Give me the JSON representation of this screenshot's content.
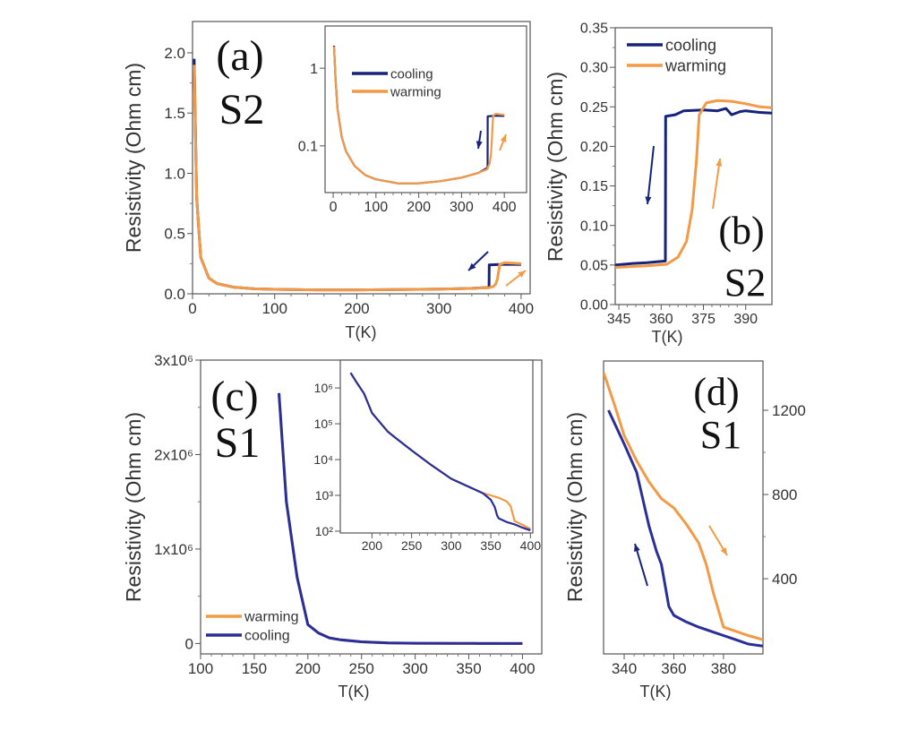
{
  "chart_data": [
    {
      "panel": "(a)",
      "sample": "S2",
      "type": "line",
      "xlabel": "T(K)",
      "ylabel": "Resistivity (Ohm cm)",
      "xlim": [
        0,
        411
      ],
      "ylim": [
        0,
        2.26
      ],
      "yscale": "linear",
      "xticks": [
        0,
        100,
        200,
        300,
        400
      ],
      "xticklabels": [
        "0",
        "100",
        "200",
        "300",
        "400"
      ],
      "yticks": [
        0,
        0.5,
        1.0,
        1.5,
        2.0
      ],
      "yticklabels": [
        "0.0",
        "0.5",
        "1.0",
        "1.5",
        "2.0"
      ],
      "series": [
        {
          "name": "cooling",
          "color": "#16237a",
          "x": [
            2,
            5,
            10,
            20,
            30,
            50,
            75,
            100,
            150,
            200,
            250,
            300,
            340,
            360,
            361,
            361.2,
            380,
            400
          ],
          "y": [
            1.95,
            0.8,
            0.3,
            0.13,
            0.085,
            0.055,
            0.042,
            0.037,
            0.033,
            0.033,
            0.035,
            0.039,
            0.045,
            0.052,
            0.052,
            0.24,
            0.245,
            0.243
          ]
        },
        {
          "name": "warming",
          "color": "#f29a45",
          "x": [
            2,
            5,
            10,
            20,
            30,
            50,
            75,
            100,
            150,
            200,
            250,
            300,
            340,
            360,
            366,
            369,
            371,
            372.5,
            374,
            380,
            390,
            400
          ],
          "y": [
            1.9,
            0.8,
            0.3,
            0.13,
            0.085,
            0.055,
            0.042,
            0.037,
            0.033,
            0.033,
            0.035,
            0.039,
            0.045,
            0.05,
            0.06,
            0.08,
            0.12,
            0.18,
            0.245,
            0.258,
            0.254,
            0.25
          ]
        }
      ],
      "arrows": [
        {
          "direction": "down-left",
          "color": "#16237a"
        },
        {
          "direction": "up-right",
          "color": "#f29a45"
        }
      ],
      "inset": {
        "yscale": "log",
        "xlim": [
          -19,
          452
        ],
        "ylim": [
          0.025,
          3.5
        ],
        "xticks": [
          0,
          100,
          200,
          300,
          400
        ],
        "xticklabels": [
          "0",
          "100",
          "200",
          "300",
          "400"
        ],
        "yticks": [
          0.1,
          1
        ],
        "yticklabels": [
          "0.1",
          "1"
        ],
        "legend": [
          "cooling",
          "warming"
        ],
        "legend_position": "top-left",
        "arrows": [
          {
            "direction": "down",
            "color": "#16237a"
          },
          {
            "direction": "up",
            "color": "#f29a45"
          }
        ]
      }
    },
    {
      "panel": "(b)",
      "sample": "S2",
      "type": "line",
      "xlabel": "T(K)",
      "ylabel": "Resistivity (Ohm cm)",
      "xlim": [
        343.7,
        399.3
      ],
      "ylim": [
        0,
        0.35
      ],
      "yscale": "linear",
      "xticks": [
        345,
        360,
        375,
        390
      ],
      "xticklabels": [
        "345",
        "360",
        "375",
        "390"
      ],
      "yticks": [
        0,
        0.05,
        0.1,
        0.15,
        0.2,
        0.25,
        0.3,
        0.35
      ],
      "yticklabels": [
        "0.00",
        "0.05",
        "0.10",
        "0.15",
        "0.20",
        "0.25",
        "0.30",
        "0.35"
      ],
      "legend": [
        "cooling",
        "warming"
      ],
      "legend_position": "top-left",
      "series": [
        {
          "name": "cooling",
          "color": "#16237a",
          "x": [
            343.7,
            350,
            355,
            361.5,
            361.6,
            365,
            368,
            375,
            380,
            383,
            385,
            388,
            390,
            395,
            399.3
          ],
          "y": [
            0.05,
            0.052,
            0.053,
            0.055,
            0.238,
            0.24,
            0.245,
            0.246,
            0.245,
            0.248,
            0.24,
            0.244,
            0.245,
            0.243,
            0.242
          ]
        },
        {
          "name": "warming",
          "color": "#f29a45",
          "x": [
            343.7,
            355,
            362,
            366,
            369,
            371,
            372.5,
            373.5,
            376,
            380,
            385,
            390,
            395,
            399.3
          ],
          "y": [
            0.047,
            0.049,
            0.051,
            0.06,
            0.08,
            0.12,
            0.18,
            0.24,
            0.255,
            0.258,
            0.257,
            0.254,
            0.25,
            0.249
          ]
        }
      ],
      "arrows": [
        {
          "direction": "down",
          "color": "#16237a"
        },
        {
          "direction": "up",
          "color": "#f29a45"
        }
      ]
    },
    {
      "panel": "(c)",
      "sample": "S1",
      "type": "line",
      "xlabel": "T(K)",
      "ylabel": "Resistivity (Ohm cm)",
      "xlim": [
        100,
        418
      ],
      "ylim": [
        -110000,
        3000000
      ],
      "yscale": "linear",
      "xticks": [
        100,
        150,
        200,
        250,
        300,
        350,
        400
      ],
      "xticklabels": [
        "100",
        "150",
        "200",
        "250",
        "300",
        "350",
        "400"
      ],
      "yticks": [
        0,
        1000000,
        2000000,
        3000000
      ],
      "yticklabels": [
        "0",
        "1x10⁶",
        "2x10⁶",
        "3x10⁶"
      ],
      "legend": [
        "warming",
        "cooling"
      ],
      "legend_position": "bottom-left",
      "series": [
        {
          "name": "warming",
          "color": "#f29a45",
          "x": [
            173,
            180,
            190,
            200,
            210,
            220,
            230,
            250,
            275,
            300,
            340,
            350,
            360,
            370,
            375,
            380,
            390,
            400
          ],
          "y": [
            2650000,
            1500000,
            700000,
            200000,
            110000,
            60000,
            40000,
            18000,
            7000,
            2900,
            1150,
            1000,
            850,
            680,
            500,
            190,
            150,
            115
          ]
        },
        {
          "name": "cooling",
          "color": "#2a2f98",
          "x": [
            173,
            180,
            190,
            200,
            210,
            220,
            230,
            250,
            275,
            300,
            340,
            350,
            355,
            358,
            360,
            370,
            380,
            390,
            400
          ],
          "y": [
            2650000,
            1500000,
            700000,
            200000,
            110000,
            60000,
            40000,
            18000,
            7000,
            2900,
            1150,
            750,
            470,
            270,
            226,
            180,
            155,
            125,
            105
          ]
        }
      ],
      "inset": {
        "yscale": "log",
        "xlim": [
          160,
          403
        ],
        "ylim": [
          89,
          6000000
        ],
        "xticks": [
          200,
          250,
          300,
          350,
          400
        ],
        "xticklabels": [
          "200",
          "250",
          "300",
          "350",
          "400"
        ],
        "yticks": [
          100,
          1000,
          10000,
          100000,
          1000000
        ],
        "yticklabels": [
          "10²",
          "10³",
          "10⁴",
          "10⁵",
          "10⁶"
        ]
      }
    },
    {
      "panel": "(d)",
      "sample": "S1",
      "type": "line",
      "xlabel": "T(K)",
      "ylabel": "Resistivity (Ohm cm)",
      "xlim": [
        331.7,
        395.9
      ],
      "ylim": [
        43,
        1434
      ],
      "yscale": "linear",
      "yaxis_side": "right",
      "xticks": [
        340,
        360,
        380
      ],
      "xticklabels": [
        "340",
        "360",
        "380"
      ],
      "yticks": [
        400,
        800,
        1200
      ],
      "yticklabels": [
        "400",
        "800",
        "1200"
      ],
      "series": [
        {
          "name": "warming",
          "color": "#f29a45",
          "x": [
            331.7,
            336,
            340,
            345,
            350,
            355,
            360,
            365,
            370,
            373,
            376,
            380,
            385,
            390,
            395.9
          ],
          "y": [
            1380,
            1230,
            1080,
            960,
            860,
            780,
            736,
            660,
            570,
            470,
            330,
            170,
            150,
            130,
            110
          ]
        },
        {
          "name": "cooling",
          "color": "#2a2f98",
          "x": [
            333.7,
            340,
            345,
            350,
            353,
            355,
            358,
            360,
            365,
            370,
            375,
            380,
            385,
            390,
            395.9
          ],
          "y": [
            1200,
            1040,
            906,
            651,
            530,
            468,
            268,
            226,
            195,
            170,
            150,
            130,
            110,
            90,
            80
          ]
        }
      ],
      "arrows": [
        {
          "direction": "up",
          "color": "#16237a"
        },
        {
          "direction": "down",
          "color": "#f29a45"
        }
      ]
    }
  ]
}
